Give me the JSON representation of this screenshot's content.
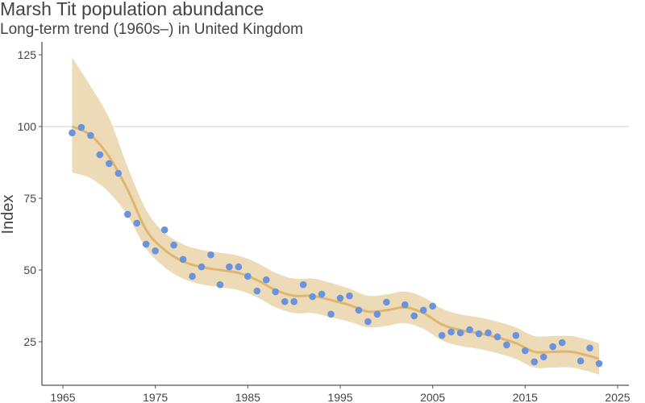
{
  "chart_data": {
    "type": "scatter",
    "title": "Marsh Tit population abundance",
    "subtitle": "Long-term trend (1960s–) in United Kingdom",
    "xlabel": "",
    "ylabel": "Index",
    "xlim": [
      1963,
      2026
    ],
    "ylim": [
      14,
      128
    ],
    "xticks": [
      1965,
      1975,
      1985,
      1995,
      2005,
      2015,
      2025
    ],
    "yticks": [
      25,
      50,
      75,
      100,
      125
    ],
    "reference_line": 100,
    "colors": {
      "points": "#6b93dc",
      "trend": "#dfb56f",
      "ci": "#eddab6",
      "grid": "#d9d9d9",
      "axis": "#555555"
    },
    "points": {
      "x": [
        1966,
        1967,
        1968,
        1969,
        1970,
        1971,
        1972,
        1973,
        1974,
        1975,
        1976,
        1977,
        1978,
        1979,
        1980,
        1981,
        1982,
        1983,
        1984,
        1985,
        1986,
        1987,
        1988,
        1989,
        1990,
        1991,
        1992,
        1993,
        1994,
        1995,
        1996,
        1997,
        1998,
        1999,
        2000,
        2002,
        2003,
        2004,
        2005,
        2006,
        2007,
        2008,
        2009,
        2010,
        2011,
        2012,
        2013,
        2014,
        2015,
        2016,
        2017,
        2018,
        2019,
        2021,
        2022,
        2023
      ],
      "y": [
        97.8,
        99.7,
        96.9,
        90.2,
        87.1,
        83.7,
        69.4,
        66.3,
        59.0,
        56.7,
        64.0,
        58.7,
        53.7,
        47.8,
        51.1,
        55.3,
        44.9,
        51.1,
        51.1,
        47.8,
        42.7,
        46.6,
        42.4,
        39.0,
        39.0,
        44.9,
        40.7,
        41.6,
        34.6,
        40.2,
        41.0,
        36.0,
        32.0,
        34.6,
        38.8,
        37.9,
        34.0,
        36.0,
        37.4,
        27.2,
        28.4,
        28.1,
        29.2,
        27.8,
        28.1,
        26.7,
        23.9,
        27.2,
        21.9,
        18.0,
        19.7,
        23.3,
        24.7,
        18.3,
        22.8,
        17.4
      ]
    },
    "trend": {
      "x": [
        1966,
        1968,
        1970,
        1972,
        1974,
        1976,
        1978,
        1980,
        1982,
        1984,
        1986,
        1988,
        1990,
        1992,
        1994,
        1996,
        1998,
        2000,
        2002,
        2004,
        2006,
        2008,
        2010,
        2012,
        2014,
        2016,
        2018,
        2020,
        2022,
        2023
      ],
      "y": [
        100,
        97,
        89.5,
        78,
        64,
        57,
        53,
        51,
        50,
        49,
        46.5,
        43,
        41,
        41,
        39.5,
        37.8,
        35.5,
        36,
        37,
        35,
        31,
        29,
        28,
        26.5,
        24.5,
        21.5,
        21.5,
        21.5,
        20,
        19
      ],
      "lower": [
        84,
        82,
        77,
        69,
        57.5,
        51,
        47,
        45,
        44,
        43,
        40.5,
        37,
        35,
        35,
        33.5,
        32,
        30,
        30.5,
        31.5,
        29.5,
        25.5,
        23.5,
        22.5,
        21,
        19,
        16,
        16,
        16,
        14.5,
        13.5
      ],
      "upper": [
        124,
        114,
        103,
        86,
        71,
        63,
        59,
        57,
        56,
        55,
        52.5,
        49,
        47,
        47,
        45.5,
        43.5,
        41,
        41.5,
        42.5,
        40.5,
        36.5,
        34.5,
        33.5,
        32,
        30,
        27,
        27,
        27,
        25.5,
        24.5
      ]
    }
  }
}
